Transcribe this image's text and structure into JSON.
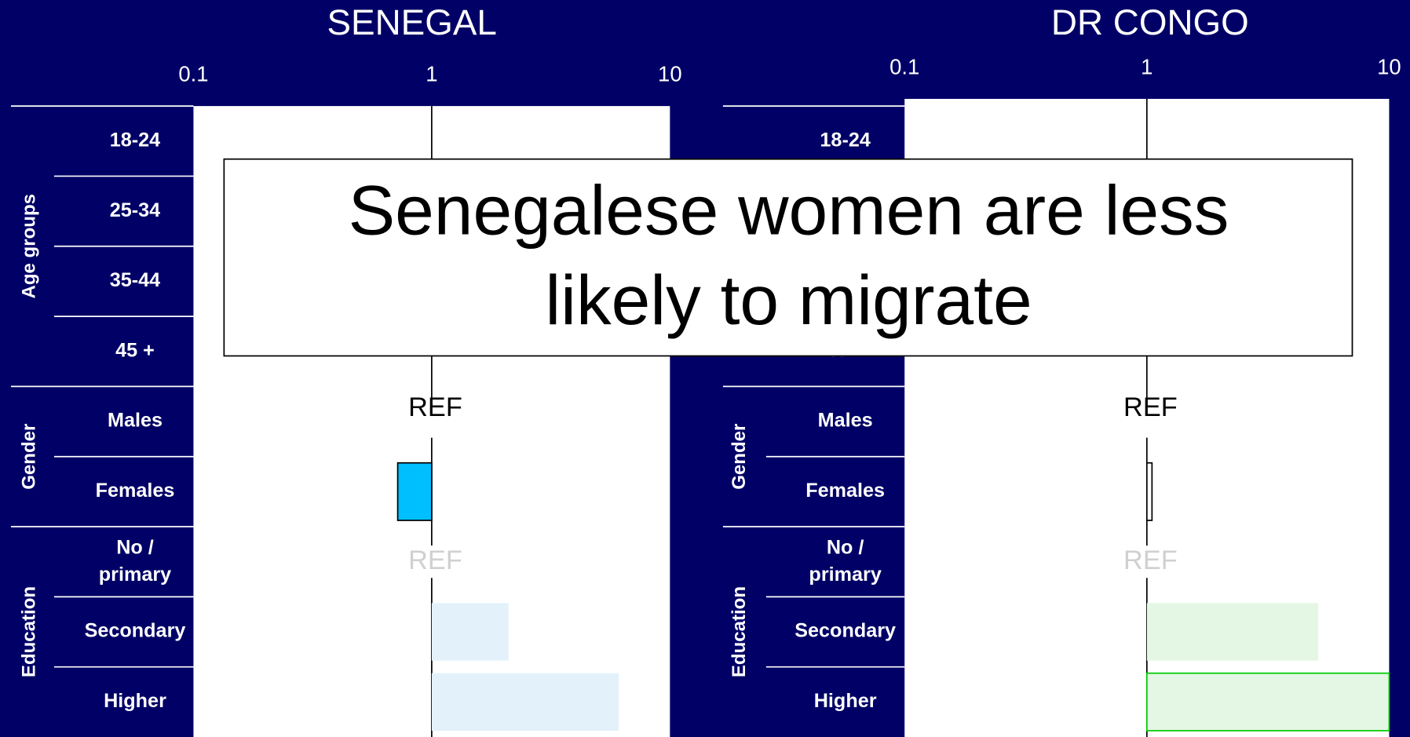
{
  "chart_data": [
    {
      "type": "bar",
      "orientation": "horizontal",
      "title": "SENEGAL",
      "xscale": "log",
      "xlim": [
        0.1,
        10
      ],
      "xticks": [
        0.1,
        1,
        10
      ],
      "reference_line": 1,
      "groups": [
        {
          "name": "Age groups",
          "size": 4
        },
        {
          "name": "Gender",
          "size": 2
        },
        {
          "name": "Education",
          "size": 3
        }
      ],
      "categories": [
        "18-24",
        "25-34",
        "35-44",
        "45 +",
        "Males",
        "Females",
        "No / primary",
        "Secondary",
        "Higher"
      ],
      "values": [
        null,
        null,
        null,
        null,
        null,
        0.72,
        null,
        2.1,
        6.1
      ],
      "value_labels": [
        null,
        null,
        null,
        null,
        "REF",
        null,
        "REF",
        null,
        null
      ],
      "value_label_colors": [
        null,
        null,
        null,
        null,
        "#000000",
        null,
        "#d0d0d0",
        null,
        null
      ],
      "colors": [
        null,
        null,
        null,
        null,
        null,
        "#00bfff",
        null,
        "#e3f2fa",
        "#e3f2fa"
      ],
      "edgecolors": [
        null,
        null,
        null,
        null,
        null,
        "#000000",
        null,
        null,
        null
      ]
    },
    {
      "type": "bar",
      "orientation": "horizontal",
      "title": "DR CONGO",
      "xscale": "log",
      "xlim": [
        0.1,
        10
      ],
      "xticks": [
        0.1,
        1,
        10
      ],
      "reference_line": 1,
      "groups": [
        {
          "name": "Age groups",
          "size": 4
        },
        {
          "name": "Gender",
          "size": 2
        },
        {
          "name": "Education",
          "size": 3
        }
      ],
      "categories": [
        "18-24",
        "25-34",
        "35-44",
        "45 +",
        "Males",
        "Females",
        "No / primary",
        "Secondary",
        "Higher"
      ],
      "values": [
        null,
        null,
        null,
        null,
        null,
        1.05,
        null,
        5.1,
        10
      ],
      "value_labels": [
        null,
        null,
        null,
        null,
        "REF",
        null,
        "REF",
        null,
        null
      ],
      "value_label_colors": [
        null,
        null,
        null,
        null,
        "#000000",
        null,
        "#d0d0d0",
        null,
        null
      ],
      "colors": [
        null,
        null,
        null,
        null,
        null,
        "#ffffff",
        null,
        "#e4f7e4",
        "#e4f7e4"
      ],
      "edgecolors": [
        null,
        null,
        null,
        null,
        null,
        "#000000",
        null,
        null,
        "#00cc00"
      ]
    }
  ],
  "callout": [
    "Senegalese women are less",
    "likely to migrate"
  ]
}
